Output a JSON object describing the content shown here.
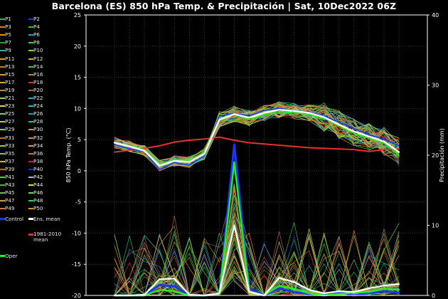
{
  "chart_data": {
    "type": "line",
    "title": "Barcelona  (ES)  850 hPa Temp. & Precipitación | Sat, 10Dec2022 06Z",
    "ylabel": "850 hPa Temp. (°C)",
    "y2label": "Precipitación (mm)",
    "ylim": [
      -20,
      25
    ],
    "y2lim": [
      0,
      40
    ],
    "yticks": [
      "25",
      "20",
      "15",
      "10",
      "5",
      "0",
      "-5",
      "-10",
      "-15",
      "-20"
    ],
    "y2ticks": [
      "40",
      "30",
      "20",
      "10",
      "0"
    ],
    "n_steps": 20,
    "grid": "dotted",
    "ens_mean_temp": [
      4.5,
      3.9,
      3.2,
      0.8,
      1.6,
      1.4,
      2.7,
      8.2,
      9.1,
      8.5,
      9.3,
      9.8,
      9.6,
      9.3,
      8.6,
      7.4,
      6.3,
      5.5,
      4.7,
      3.0
    ],
    "control_temp": [
      4.2,
      3.5,
      3.1,
      0.2,
      1.3,
      0.9,
      2.4,
      8.8,
      9.2,
      8.8,
      9.7,
      10.0,
      9.7,
      9.4,
      8.8,
      7.8,
      6.8,
      5.8,
      5.1,
      4.0
    ],
    "oper_temp": [
      4.6,
      4.0,
      3.4,
      1.0,
      1.9,
      1.6,
      3.0,
      8.5,
      9.0,
      8.2,
      9.0,
      9.5,
      9.3,
      9.0,
      8.4,
      7.2,
      6.0,
      5.2,
      4.5,
      2.5
    ],
    "climate_mean_temp": [
      3.0,
      3.3,
      3.6,
      4.0,
      4.6,
      4.9,
      5.1,
      5.4,
      4.9,
      4.5,
      4.3,
      4.1,
      3.9,
      3.7,
      3.6,
      3.5,
      3.4,
      3.1,
      3.4,
      3.5
    ],
    "ens_mean_precip": [
      0.0,
      0.0,
      0.1,
      2.3,
      2.4,
      0.1,
      0.0,
      0.3,
      10.0,
      0.5,
      0.0,
      2.5,
      1.9,
      0.8,
      0.3,
      0.6,
      0.5,
      1.0,
      1.4,
      1.6
    ],
    "control_precip": [
      0.0,
      0.0,
      0.0,
      1.5,
      1.3,
      0.0,
      0.0,
      0.2,
      21.5,
      1.0,
      0.0,
      1.0,
      0.5,
      0.2,
      0.0,
      0.5,
      0.0,
      0.3,
      0.6,
      0.4
    ],
    "oper_precip": [
      0.0,
      0.0,
      0.0,
      0.8,
      0.6,
      0.0,
      0.0,
      0.1,
      19.0,
      0.6,
      0.0,
      1.4,
      0.9,
      0.3,
      0.0,
      0.2,
      0.4,
      0.5,
      0.9,
      0.8
    ]
  },
  "legend": {
    "members": [
      "P1",
      "P2",
      "P3",
      "P4",
      "P5",
      "P6",
      "P7",
      "P8",
      "P9",
      "P10",
      "P11",
      "P12",
      "P13",
      "P14",
      "P15",
      "P16",
      "P17",
      "P18",
      "P19",
      "P20",
      "P21",
      "P22",
      "P23",
      "P24",
      "P25",
      "P26",
      "P27",
      "P28",
      "P29",
      "P30",
      "P31",
      "P32",
      "P33",
      "P34",
      "P35",
      "P36",
      "P37",
      "P38",
      "P39",
      "P40",
      "P41",
      "P42",
      "P43",
      "P44",
      "P45",
      "P46",
      "P47",
      "P48",
      "P49",
      "P50"
    ],
    "member_colors": [
      "#3fae5a",
      "#2233ee",
      "#e07a2a",
      "#11cc33",
      "#ff8800",
      "#2d9bd8",
      "#22aa22",
      "#33dd33",
      "#2fae9f",
      "#66ee11",
      "#d9a020",
      "#c8b020",
      "#cc7722",
      "#33cc55",
      "#ee9933",
      "#aa8855",
      "#e8a040",
      "#dd3322",
      "#bb8833",
      "#cc5522",
      "#9ad060",
      "#22aadd",
      "#e0d060",
      "#22bbcc",
      "#88cc77",
      "#2299aa",
      "#bbcc55",
      "#22cc88",
      "#a0d040",
      "#c09070",
      "#bb7733",
      "#dd8844",
      "#aacc33",
      "#dd9966",
      "#88bb88",
      "#cc6644",
      "#ccbb44",
      "#cc2244",
      "#ee5522",
      "#1133cc",
      "#55cc44",
      "#aabbcc",
      "#44bb33",
      "#ccee55",
      "#66bb66",
      "#66dd44",
      "#cc9955",
      "#22dd55",
      "#dd7733",
      "#dd9922"
    ],
    "control": "Control",
    "ens_mean": "Ens. mean",
    "climate_mean": "1981-2010\nmean",
    "oper": "Oper",
    "control_color": "#1a35ff",
    "ens_mean_color": "#ffffff",
    "climate_color": "#e8302a",
    "oper_color": "#22ee22"
  }
}
